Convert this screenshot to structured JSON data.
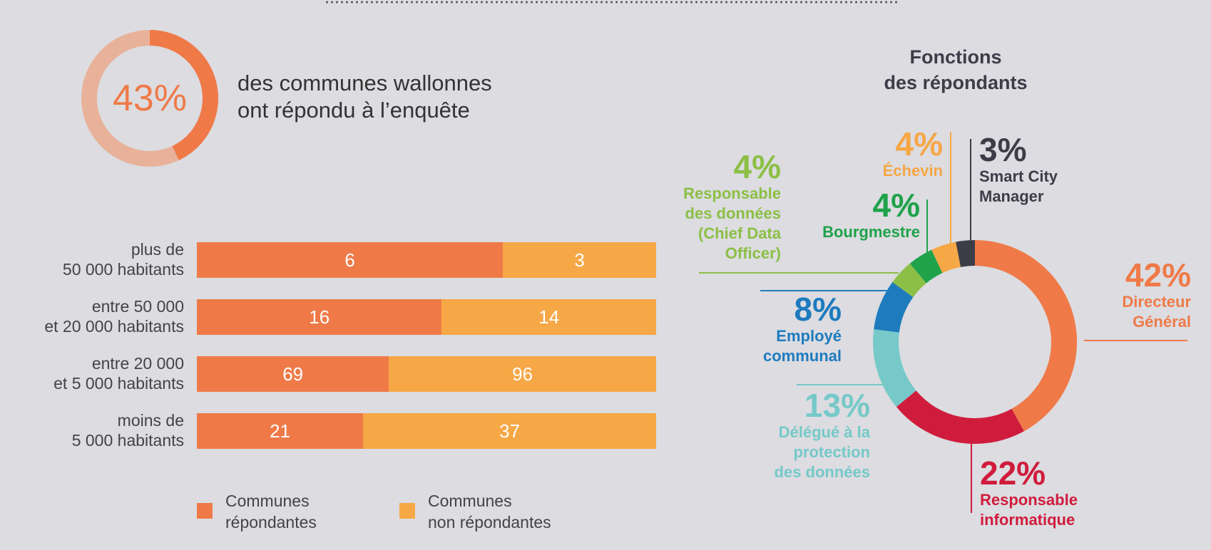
{
  "colors": {
    "respondents": "#ef7a48",
    "non_respondents": "#f6a746",
    "ring_track": "#e8b29a",
    "background": "#dcdce1"
  },
  "summary": {
    "percent_label": "43%",
    "percent_value": 43,
    "text_line1": "des communes wallonnes",
    "text_line2": "ont répondu à l’enquête"
  },
  "chart_data": [
    {
      "type": "bar",
      "orientation": "horizontal",
      "stacked": true,
      "categories": [
        [
          "plus de",
          "50 000 habitants"
        ],
        [
          "entre 50 000",
          "et 20 000 habitants"
        ],
        [
          "entre 20 000",
          "et 5 000 habitants"
        ],
        [
          "moins de",
          "5 000 habitants"
        ]
      ],
      "series": [
        {
          "name": "Communes répondantes",
          "legend_lines": [
            "Communes",
            "répondantes"
          ],
          "color": "#ef7a48",
          "values": [
            6,
            16,
            69,
            21
          ]
        },
        {
          "name": "Communes non répondantes",
          "legend_lines": [
            "Communes",
            "non répondantes"
          ],
          "color": "#f6a746",
          "values": [
            3,
            14,
            96,
            37
          ]
        }
      ],
      "normalized": true,
      "legend_position": "bottom"
    },
    {
      "type": "pie",
      "donut": true,
      "title_lines": [
        "Fonctions",
        "des répondants"
      ],
      "slices": [
        {
          "label_lines": [
            "Directeur",
            "Général"
          ],
          "pct_label": "42%",
          "value": 42,
          "color": "#ef7a48"
        },
        {
          "label_lines": [
            "Responsable",
            "informatique"
          ],
          "pct_label": "22%",
          "value": 22,
          "color": "#d01c3c"
        },
        {
          "label_lines": [
            "Délégué à la",
            "protection",
            "des données"
          ],
          "pct_label": "13%",
          "value": 13,
          "color": "#76c9c8"
        },
        {
          "label_lines": [
            "Employé",
            "communal"
          ],
          "pct_label": "8%",
          "value": 8,
          "color": "#1e7bbe"
        },
        {
          "label_lines": [
            "Responsable",
            "des données",
            "(Chief Data",
            "Officer)"
          ],
          "pct_label": "4%",
          "value": 4,
          "color": "#8cbf45"
        },
        {
          "label_lines": [
            "Bourgmestre"
          ],
          "pct_label": "4%",
          "value": 4,
          "color": "#1fa24a"
        },
        {
          "label_lines": [
            "Échevin"
          ],
          "pct_label": "4%",
          "value": 4,
          "color": "#f6a746"
        },
        {
          "label_lines": [
            "Smart City",
            "Manager"
          ],
          "pct_label": "3%",
          "value": 3,
          "color": "#3d3d48"
        }
      ]
    }
  ]
}
